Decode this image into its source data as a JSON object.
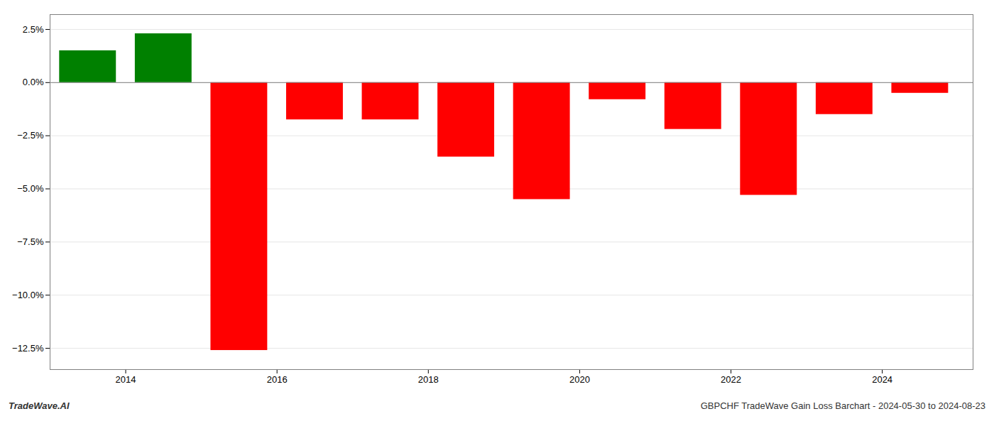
{
  "chart_data": {
    "type": "bar",
    "x": [
      2013.5,
      2014.5,
      2015.5,
      2016.5,
      2017.5,
      2018.5,
      2019.5,
      2020.5,
      2021.5,
      2022.5,
      2023.5,
      2024.5
    ],
    "values": [
      1.5,
      2.3,
      -12.6,
      -1.75,
      -1.75,
      -3.5,
      -5.5,
      -0.8,
      -2.2,
      -5.3,
      -1.5,
      -0.5
    ],
    "colors": [
      "#008000",
      "#008000",
      "#ff0000",
      "#ff0000",
      "#ff0000",
      "#ff0000",
      "#ff0000",
      "#ff0000",
      "#ff0000",
      "#ff0000",
      "#ff0000",
      "#ff0000"
    ],
    "xlim": [
      2013.0,
      2025.2
    ],
    "xticks": [
      2014,
      2016,
      2018,
      2020,
      2022,
      2024
    ],
    "ylim": [
      -13.5,
      3.2
    ],
    "yticks": [
      {
        "value": 2.5,
        "label": "2.5%"
      },
      {
        "value": 0.0,
        "label": "0.0%"
      },
      {
        "value": -2.5,
        "label": "−2.5%"
      },
      {
        "value": -5.0,
        "label": "−5.0%"
      },
      {
        "value": -7.5,
        "label": "−7.5%"
      },
      {
        "value": -10.0,
        "label": "−10.0%"
      },
      {
        "value": -12.5,
        "label": "−12.5%"
      }
    ],
    "grid": true,
    "annotations": [
      "TradeWave.AI",
      "GBPCHF TradeWave Gain Loss Barchart - 2024-05-30 to 2024-08-23"
    ]
  }
}
